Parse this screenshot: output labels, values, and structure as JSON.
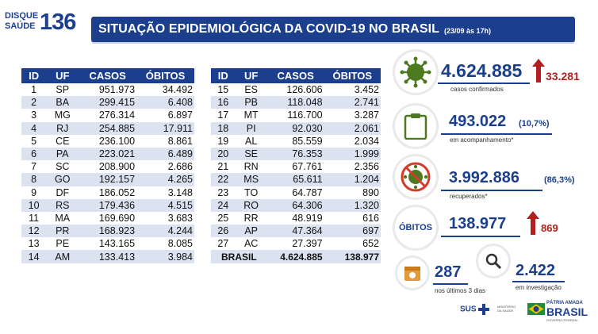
{
  "logo": {
    "line1": "DISQUE",
    "line2": "SAÚDE",
    "number": "136"
  },
  "header": {
    "title": "SITUAÇÃO EPIDEMIOLÓGICA DA COVID-19 NO BRASIL",
    "date": "(23/09 às 17h)"
  },
  "columns": {
    "id": "ID",
    "uf": "UF",
    "casos": "CASOS",
    "obitos": "ÓBITOS"
  },
  "table_left": [
    {
      "id": "1",
      "uf": "SP",
      "casos": "951.973",
      "obitos": "34.492"
    },
    {
      "id": "2",
      "uf": "BA",
      "casos": "299.415",
      "obitos": "6.408"
    },
    {
      "id": "3",
      "uf": "MG",
      "casos": "276.314",
      "obitos": "6.897"
    },
    {
      "id": "4",
      "uf": "RJ",
      "casos": "254.885",
      "obitos": "17.911"
    },
    {
      "id": "5",
      "uf": "CE",
      "casos": "236.100",
      "obitos": "8.861"
    },
    {
      "id": "6",
      "uf": "PA",
      "casos": "223.021",
      "obitos": "6.489"
    },
    {
      "id": "7",
      "uf": "SC",
      "casos": "208.900",
      "obitos": "2.686"
    },
    {
      "id": "8",
      "uf": "GO",
      "casos": "192.157",
      "obitos": "4.265"
    },
    {
      "id": "9",
      "uf": "DF",
      "casos": "186.052",
      "obitos": "3.148"
    },
    {
      "id": "10",
      "uf": "RS",
      "casos": "179.436",
      "obitos": "4.515"
    },
    {
      "id": "11",
      "uf": "MA",
      "casos": "169.690",
      "obitos": "3.683"
    },
    {
      "id": "12",
      "uf": "PR",
      "casos": "168.923",
      "obitos": "4.244"
    },
    {
      "id": "13",
      "uf": "PE",
      "casos": "143.165",
      "obitos": "8.085"
    },
    {
      "id": "14",
      "uf": "AM",
      "casos": "133.413",
      "obitos": "3.984"
    }
  ],
  "table_right": [
    {
      "id": "15",
      "uf": "ES",
      "casos": "126.606",
      "obitos": "3.452"
    },
    {
      "id": "16",
      "uf": "PB",
      "casos": "118.048",
      "obitos": "2.741"
    },
    {
      "id": "17",
      "uf": "MT",
      "casos": "116.700",
      "obitos": "3.287"
    },
    {
      "id": "18",
      "uf": "PI",
      "casos": "92.030",
      "obitos": "2.061"
    },
    {
      "id": "19",
      "uf": "AL",
      "casos": "85.559",
      "obitos": "2.034"
    },
    {
      "id": "20",
      "uf": "SE",
      "casos": "76.353",
      "obitos": "1.999"
    },
    {
      "id": "21",
      "uf": "RN",
      "casos": "67.761",
      "obitos": "2.356"
    },
    {
      "id": "22",
      "uf": "MS",
      "casos": "65.611",
      "obitos": "1.204"
    },
    {
      "id": "23",
      "uf": "TO",
      "casos": "64.787",
      "obitos": "890"
    },
    {
      "id": "24",
      "uf": "RO",
      "casos": "64.306",
      "obitos": "1.320"
    },
    {
      "id": "25",
      "uf": "RR",
      "casos": "48.919",
      "obitos": "616"
    },
    {
      "id": "26",
      "uf": "AP",
      "casos": "47.364",
      "obitos": "697"
    },
    {
      "id": "27",
      "uf": "AC",
      "casos": "27.397",
      "obitos": "652"
    }
  ],
  "total": {
    "label": "BRASIL",
    "casos": "4.624.885",
    "obitos": "138.977"
  },
  "summary": {
    "confirmados": {
      "value": "4.624.885",
      "delta": "33.281",
      "label": "casos confirmados"
    },
    "acompanhamento": {
      "value": "493.022",
      "pct": "(10,7%)",
      "label": "em acompanhamento*"
    },
    "recuperados": {
      "value": "3.992.886",
      "pct": "(86,3%)",
      "label": "recuperados*"
    },
    "obitos": {
      "badge": "ÓBITOS",
      "value": "138.977",
      "delta": "869"
    },
    "recentes": {
      "value": "287",
      "label": "nos últimos 3 dias"
    },
    "investigacao": {
      "value": "2.422",
      "label": "em investigação"
    }
  },
  "footer": {
    "sus": "SUS",
    "ministerio": "MINISTÉRIO DA SAÚDE",
    "patria": "PÁTRIA AMADA",
    "brasil": "BRASIL",
    "governo": "GOVERNO FEDERAL"
  },
  "colors": {
    "brand_blue": "#1b3f8c",
    "accent_red": "#b21f1f",
    "row_alt": "#dbe3f1",
    "virus_green": "#4d7a1f"
  },
  "icons": [
    "virus-icon",
    "clipboard-icon",
    "no-virus-icon",
    "calendar-icon",
    "magnifier-icon",
    "up-arrow-icon"
  ]
}
